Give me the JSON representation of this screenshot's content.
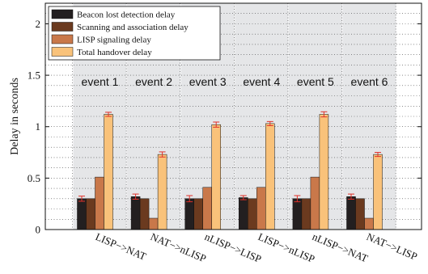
{
  "chart_data": {
    "type": "bar",
    "ylabel": "Delay in seconds",
    "ylim": [
      0,
      2.2
    ],
    "yticks": [
      0,
      0.5,
      1,
      1.5,
      2
    ],
    "ytick_labels": [
      "0",
      "0.5",
      "1",
      "1.5",
      "2"
    ],
    "grid": "dotted",
    "legend_position": "top-left",
    "categories": [
      "LISP−>NAT",
      "NAT−>nLISP",
      "nLISP−>LISP",
      "LISP−>nLISP",
      "nLISP−>NAT",
      "NAT−>LISP"
    ],
    "event_labels": [
      "event 1",
      "event 2",
      "event 3",
      "event 4",
      "event 5",
      "event 6"
    ],
    "series": [
      {
        "name": "Beacon lost detection delay",
        "color": "#231f20",
        "values": [
          0.3,
          0.32,
          0.3,
          0.31,
          0.3,
          0.32
        ],
        "errors": [
          0.025,
          0.025,
          0.03,
          0.02,
          0.03,
          0.025
        ]
      },
      {
        "name": "Scanning and association delay",
        "color": "#6b3a1f",
        "values": [
          0.3,
          0.3,
          0.3,
          0.3,
          0.3,
          0.3
        ],
        "errors": [
          0,
          0,
          0,
          0,
          0,
          0
        ]
      },
      {
        "name": "LISP signaling delay",
        "color": "#c9784a",
        "values": [
          0.51,
          0.11,
          0.41,
          0.41,
          0.51,
          0.11
        ],
        "errors": [
          0,
          0,
          0,
          0,
          0,
          0
        ]
      },
      {
        "name": "Total handover delay",
        "color": "#f9c27a",
        "values": [
          1.12,
          0.73,
          1.02,
          1.03,
          1.12,
          0.73
        ],
        "errors": [
          0.02,
          0.025,
          0.025,
          0.02,
          0.025,
          0.02
        ]
      }
    ],
    "errorbar_color": "#e0312a",
    "shade_color": "#e5e6e8"
  }
}
